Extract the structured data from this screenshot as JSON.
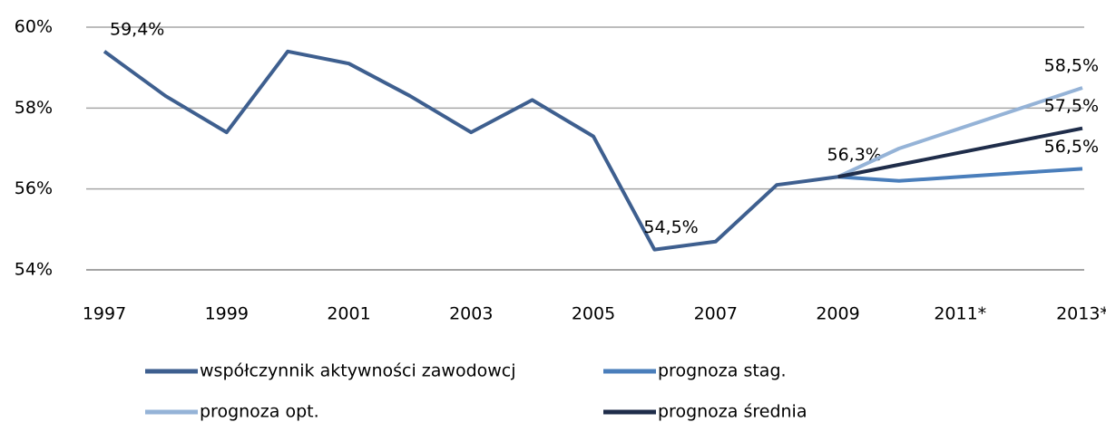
{
  "chart_data": {
    "type": "line",
    "categories": [
      "1997",
      null,
      "1999",
      null,
      "2001",
      null,
      "2003",
      null,
      "2005",
      null,
      "2007",
      null,
      "2009",
      null,
      "2011*",
      null,
      "2013*"
    ],
    "series": [
      {
        "name": "współczynnik aktywności zawodowcj",
        "color": "#3e5f8f",
        "values": [
          59.4,
          58.3,
          57.4,
          59.4,
          59.1,
          58.3,
          57.4,
          58.2,
          57.3,
          54.5,
          54.7,
          56.1,
          56.3,
          null,
          null,
          null,
          null
        ],
        "value_labels": [
          "59,4%",
          null,
          null,
          null,
          null,
          null,
          null,
          null,
          null,
          "54,5%",
          null,
          null,
          "56,3%",
          null,
          null,
          null,
          null
        ]
      },
      {
        "name": "prognoza stag.",
        "color": "#4a7ebb",
        "values": [
          null,
          null,
          null,
          null,
          null,
          null,
          null,
          null,
          null,
          null,
          null,
          null,
          56.3,
          56.2,
          56.3,
          56.4,
          56.5
        ],
        "value_labels": [
          null,
          null,
          null,
          null,
          null,
          null,
          null,
          null,
          null,
          null,
          null,
          null,
          null,
          null,
          null,
          null,
          "56,5%"
        ]
      },
      {
        "name": "prognoza opt.",
        "color": "#95b3d7",
        "values": [
          null,
          null,
          null,
          null,
          null,
          null,
          null,
          null,
          null,
          null,
          null,
          null,
          56.3,
          57.0,
          57.5,
          58.0,
          58.5
        ],
        "value_labels": [
          null,
          null,
          null,
          null,
          null,
          null,
          null,
          null,
          null,
          null,
          null,
          null,
          null,
          null,
          null,
          null,
          "58,5%"
        ]
      },
      {
        "name": "prognoza średnia",
        "color": "#1f2d4a",
        "values": [
          null,
          null,
          null,
          null,
          null,
          null,
          null,
          null,
          null,
          null,
          null,
          null,
          56.3,
          56.6,
          56.9,
          57.2,
          57.5
        ],
        "value_labels": [
          null,
          null,
          null,
          null,
          null,
          null,
          null,
          null,
          null,
          null,
          null,
          null,
          null,
          null,
          null,
          null,
          "57,5%"
        ]
      }
    ],
    "ylim": [
      54,
      60
    ],
    "yticks": [
      {
        "value": 54,
        "label": "54%"
      },
      {
        "value": 56,
        "label": "56%"
      },
      {
        "value": 58,
        "label": "58%"
      },
      {
        "value": 60,
        "label": "60%"
      }
    ],
    "grid": true
  }
}
